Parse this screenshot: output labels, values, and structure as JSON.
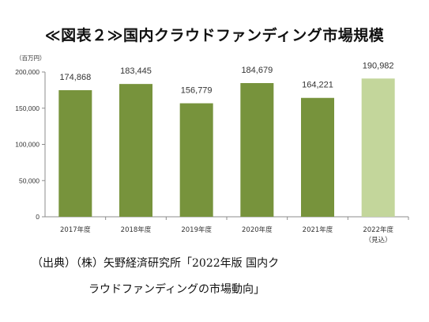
{
  "chart_data": {
    "type": "bar",
    "title": "≪図表２≫国内クラウドファンディング市場規模",
    "unit_label": "（百万円）",
    "categories": [
      "2017年度",
      "2018年度",
      "2019年度",
      "2020年度",
      "2021年度",
      "2022年度"
    ],
    "category_notes": [
      "",
      "",
      "",
      "",
      "",
      "（見込）"
    ],
    "values": [
      174868,
      183445,
      156779,
      184679,
      164221,
      190982
    ],
    "value_labels": [
      "174,868",
      "183,445",
      "156,779",
      "184,679",
      "164,221",
      "190,982"
    ],
    "ylim": [
      0,
      200000
    ],
    "yticks": [
      0,
      50000,
      100000,
      150000,
      200000
    ],
    "ytick_labels": [
      "0",
      "50,000",
      "100,000",
      "150,000",
      "200,000"
    ],
    "grid": false,
    "legend": "none",
    "colors": {
      "actual": "#77933c",
      "forecast": "#c3d69b"
    },
    "bar_colors": [
      "actual",
      "actual",
      "actual",
      "actual",
      "actual",
      "forecast"
    ]
  },
  "source": {
    "line1": "（出典）（株）矢野経済研究所「2022年版 国内ク",
    "line2": "ラウドファンディングの市場動向」"
  }
}
